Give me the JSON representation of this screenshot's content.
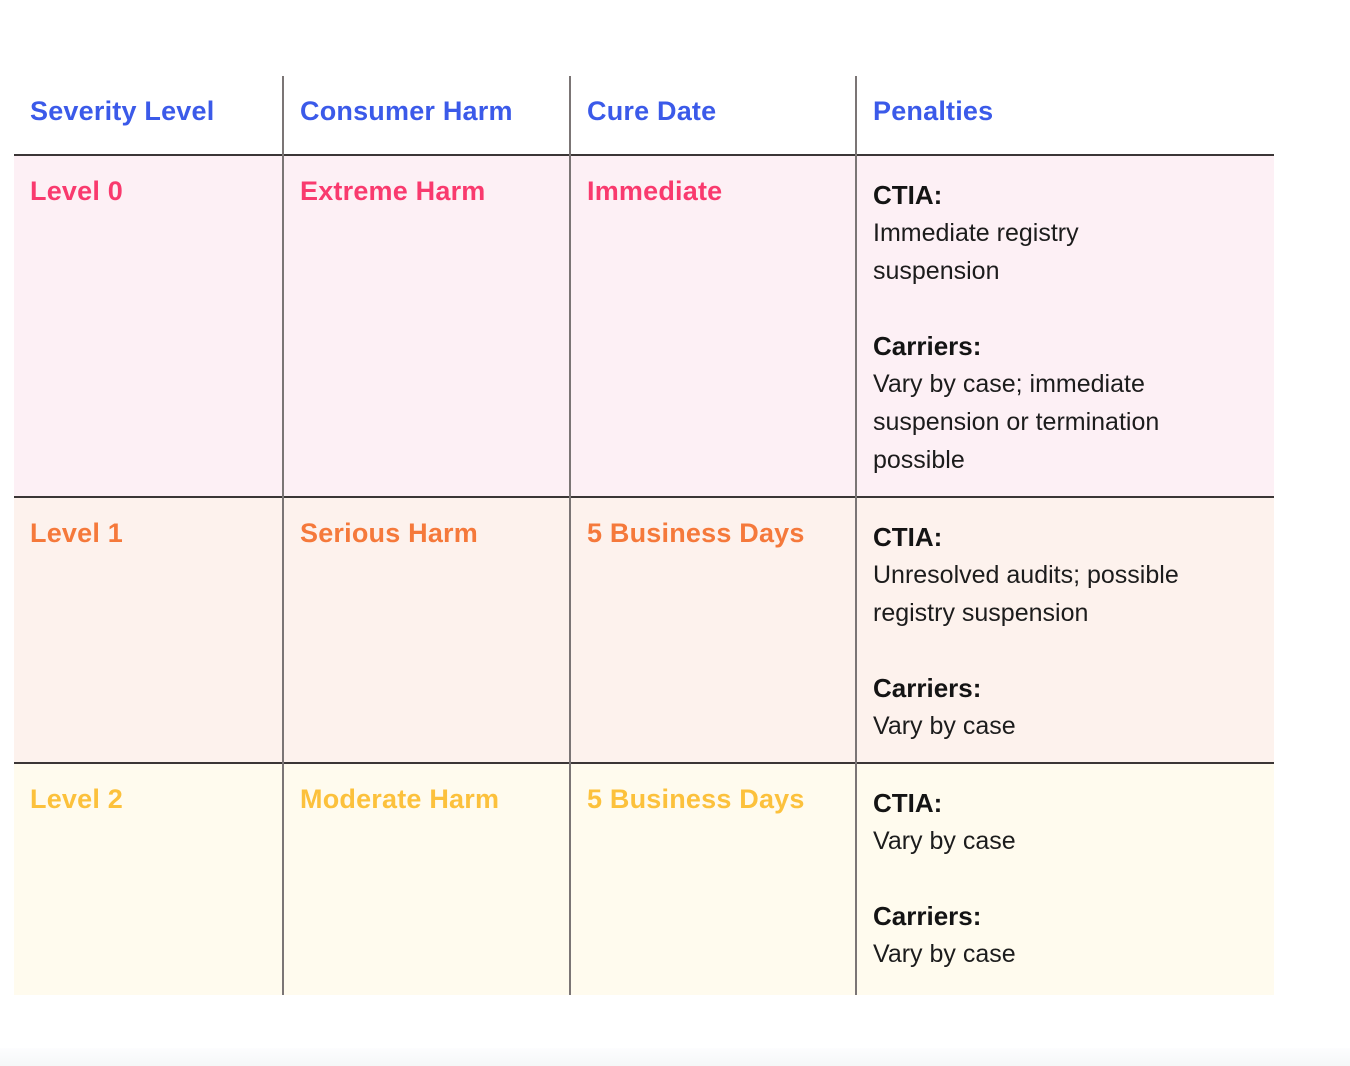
{
  "table": {
    "header_color": "#3b5ae9",
    "border_colors": {
      "vertical": "#7b7575",
      "horizontal": "#3b3636"
    },
    "headers": {
      "severity": "Severity Level",
      "harm": "Consumer Harm",
      "cure": "Cure Date",
      "penalties": "Penalties"
    },
    "rows": [
      {
        "severity": "Level 0",
        "harm": "Extreme Harm",
        "cure": "Immediate",
        "accent": "#f93a6e",
        "bg": "#fdf0f5",
        "penalties": [
          {
            "heading": "CTIA:",
            "body": "Immediate registry\nsuspension"
          },
          {
            "heading": "Carriers:",
            "body": "Vary by case; immediate\nsuspension or termination\npossible"
          }
        ]
      },
      {
        "severity": "Level 1",
        "harm": "Serious Harm",
        "cure": "5 Business Days",
        "accent": "#f5793b",
        "bg": "#fdf2ed",
        "penalties": [
          {
            "heading": "CTIA:",
            "body": "Unresolved audits; possible\nregistry suspension"
          },
          {
            "heading": "Carriers:",
            "body": "Vary by case"
          }
        ]
      },
      {
        "severity": "Level 2",
        "harm": "Moderate Harm",
        "cure": "5 Business Days",
        "accent": "#fcc13c",
        "bg": "#fffbee",
        "penalties": [
          {
            "heading": "CTIA:",
            "body": "Vary by case"
          },
          {
            "heading": "Carriers:",
            "body": "Vary by case"
          }
        ]
      }
    ]
  }
}
